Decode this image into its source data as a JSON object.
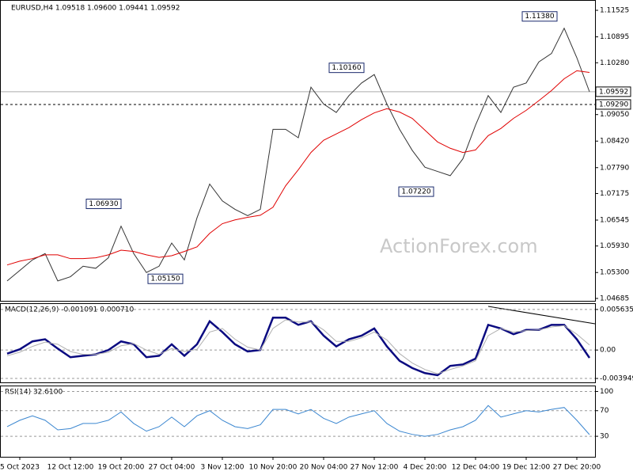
{
  "chart_data": [
    {
      "type": "line",
      "header": "EURUSD,H4  1.09518 1.09600 1.09441 1.09592",
      "watermark": "ActionForex.com",
      "ylim": [
        1.04628,
        1.11751
      ],
      "yticks": [
        1.11525,
        1.10895,
        {
          "value": 1.1028,
          "label": "1.10280"
        },
        {
          "value": 1.0905,
          "label": "1.09050"
        },
        {
          "value": 1.0842,
          "label": "1.08420"
        },
        {
          "value": 1.0779,
          "label": "1.07790"
        },
        1.07175,
        1.06545,
        {
          "value": 1.0593,
          "label": "1.05930"
        },
        {
          "value": 1.053,
          "label": "1.05300"
        },
        1.04685
      ],
      "current": {
        "value": 1.09592,
        "label": "1.09592"
      },
      "level": {
        "value": 1.0929,
        "label": "1.09290"
      },
      "annotations": [
        {
          "value": 1.0693,
          "label": "1.06930"
        },
        {
          "value": 1.0515,
          "label": "1.05150"
        },
        {
          "value": 1.1016,
          "label": "1.10160"
        },
        {
          "value": 1.0722,
          "label": "1.07220"
        },
        {
          "value": 1.1138,
          "label": "1.11380"
        }
      ],
      "series": [
        {
          "name": "EURUSD",
          "color": "#333333",
          "values": [
            1.051,
            1.0535,
            1.056,
            1.0575,
            1.051,
            1.052,
            1.0545,
            1.054,
            1.0565,
            1.064,
            1.0575,
            1.053,
            1.0545,
            1.06,
            1.056,
            1.066,
            1.074,
            1.07,
            1.068,
            1.0665,
            1.068,
            1.087,
            1.087,
            1.085,
            1.097,
            1.093,
            1.091,
            1.095,
            1.098,
            1.1,
            1.093,
            1.087,
            1.082,
            1.078,
            1.077,
            1.076,
            1.08,
            1.088,
            1.095,
            1.091,
            1.097,
            1.098,
            1.103,
            1.105,
            1.111,
            1.104,
            1.09592
          ]
        },
        {
          "name": "MA",
          "color": "#e00000",
          "values": [
            1.0548,
            1.0557,
            1.0563,
            1.0572,
            1.0572,
            1.0563,
            1.0563,
            1.0565,
            1.0572,
            1.0583,
            1.058,
            1.0572,
            1.0566,
            1.057,
            1.058,
            1.0591,
            1.0623,
            1.0646,
            1.0655,
            1.0661,
            1.0666,
            1.0685,
            1.0736,
            1.0774,
            1.0815,
            1.0844,
            1.0859,
            1.0874,
            1.0893,
            1.0909,
            1.0919,
            1.0911,
            1.0896,
            1.0868,
            1.084,
            1.0825,
            1.0815,
            1.0821,
            1.0855,
            1.0872,
            1.0896,
            1.0915,
            1.0938,
            1.0962,
            1.099,
            1.1009,
            1.1005
          ]
        }
      ]
    },
    {
      "type": "line",
      "title": "MACD(12,26,9) -0.001091 0.000710",
      "ylim": [
        -0.004494,
        0.006397
      ],
      "yticks": [
        0.005635,
        {
          "value": 0,
          "label": "0.00"
        },
        -0.003949
      ],
      "series": [
        {
          "name": "MACD",
          "color": "#0a0a80",
          "values": [
            -0.0005,
            0.0001,
            0.0012,
            0.0015,
            0.0002,
            -0.001,
            -0.0008,
            -0.0006,
            0,
            0.0012,
            0.0008,
            -0.001,
            -0.0008,
            0.0008,
            -0.0008,
            0.0008,
            0.004,
            0.0025,
            0.0008,
            -0.0002,
            0,
            0.0045,
            0.0045,
            0.0035,
            0.004,
            0.002,
            0.0005,
            0.0015,
            0.002,
            0.003,
            0.0005,
            -0.0015,
            -0.0025,
            -0.0032,
            -0.0035,
            -0.0022,
            -0.002,
            -0.0012,
            0.0035,
            0.003,
            0.0022,
            0.0028,
            0.0028,
            0.0035,
            0.0035,
            0.0015,
            -0.001091
          ]
        },
        {
          "name": "Signal",
          "color": "#b0b0b0",
          "values": [
            -0.0008,
            -0.0003,
            0.0005,
            0.0011,
            0.0008,
            -0.0002,
            -0.0006,
            -0.0006,
            -0.0003,
            0.0006,
            0.0009,
            0,
            -0.0006,
            0.0002,
            -0.0002,
            0.0001,
            0.0025,
            0.003,
            0.0015,
            0.0004,
            0,
            0.003,
            0.0042,
            0.0039,
            0.0039,
            0.0028,
            0.0012,
            0.0012,
            0.0017,
            0.0025,
            0.0014,
            -0.0005,
            -0.0018,
            -0.0027,
            -0.0033,
            -0.0027,
            -0.0022,
            -0.0015,
            0.002,
            0.003,
            0.0025,
            0.0027,
            0.0028,
            0.0032,
            0.0034,
            0.0022,
            0.00071
          ]
        }
      ]
    },
    {
      "type": "line",
      "title": "RSI(14) 32.6100",
      "ylim": [
        -2,
        108
      ],
      "yticks": [
        100,
        70,
        30
      ],
      "categories": [
        null,
        "5 Oct 2023",
        null,
        null,
        null,
        "12 Oct 12:00",
        null,
        null,
        null,
        "19 Oct 20:00",
        null,
        null,
        null,
        "27 Oct 04:00",
        null,
        null,
        null,
        "3 Nov 12:00",
        null,
        null,
        null,
        "10 Nov 20:00",
        null,
        null,
        null,
        "20 Nov 04:00",
        null,
        null,
        null,
        "27 Nov 12:00",
        null,
        null,
        null,
        "4 Dec 20:00",
        null,
        null,
        null,
        "12 Dec 04:00",
        null,
        null,
        null,
        "19 Dec 12:00",
        null,
        null,
        null,
        "27 Dec 20:00",
        null
      ],
      "series": [
        {
          "name": "RSI",
          "color": "#3a86d0",
          "values": [
            45,
            55,
            62,
            55,
            40,
            42,
            50,
            50,
            55,
            68,
            50,
            38,
            45,
            60,
            45,
            62,
            70,
            55,
            45,
            42,
            48,
            72,
            72,
            65,
            72,
            58,
            50,
            60,
            65,
            70,
            50,
            38,
            33,
            30,
            33,
            40,
            45,
            55,
            78,
            60,
            65,
            70,
            68,
            72,
            75,
            55,
            32.61
          ]
        }
      ]
    }
  ]
}
